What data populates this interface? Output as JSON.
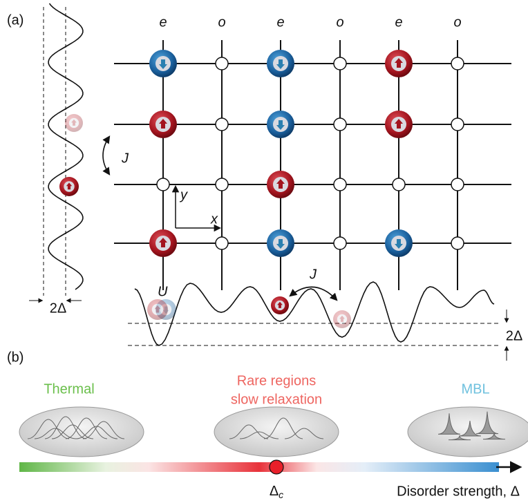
{
  "panel_a": {
    "label": "(a)",
    "column_labels": [
      "e",
      "o",
      "e",
      "o",
      "e",
      "o"
    ],
    "axis_x": "x",
    "axis_y": "y",
    "hopping_left": "J",
    "hopping_bottom": "J",
    "interaction": "U",
    "width_left": "2Δ",
    "width_right": "2Δ"
  },
  "panel_b": {
    "label": "(b)",
    "regimes": [
      {
        "lines": [
          "Thermal"
        ]
      },
      {
        "lines": [
          "Rare regions",
          "slow relaxation"
        ]
      },
      {
        "lines": [
          "MBL"
        ]
      }
    ],
    "critical_symbol": "Δ",
    "critical_subscript": "c",
    "axis_label": "Disorder strength, Δ"
  }
}
